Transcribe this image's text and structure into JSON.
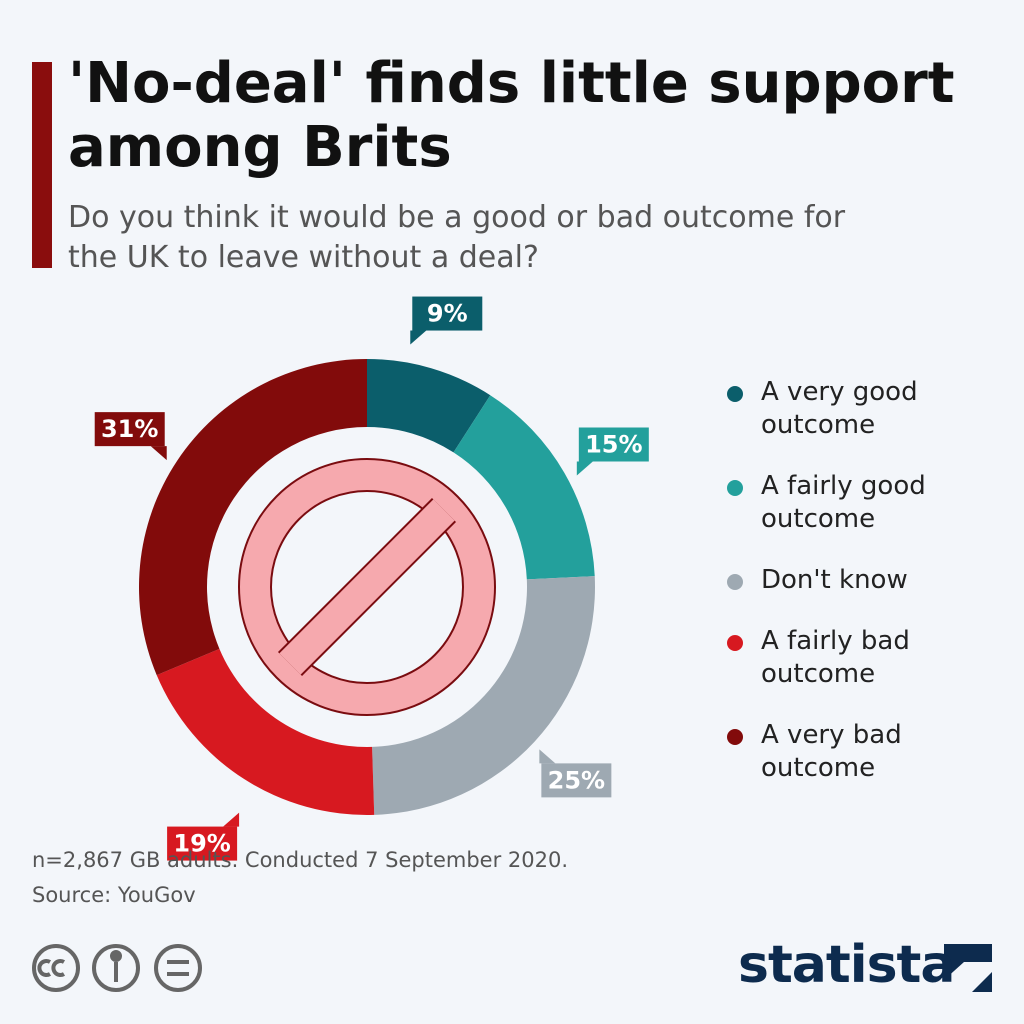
{
  "chart_data": {
    "type": "donut",
    "title": "'No-deal' finds little support among Brits",
    "subtitle": "Do you think it would be a good or bad outcome for the UK to leave without a deal?",
    "categories": [
      "A very good outcome",
      "A fairly good outcome",
      "Don't know",
      "A fairly bad outcome",
      "A very bad outcome"
    ],
    "values": [
      9,
      15,
      25,
      19,
      31
    ],
    "value_labels": [
      "9%",
      "15%",
      "25%",
      "19%",
      "31%"
    ],
    "colors": [
      "#0b5e6b",
      "#23a09c",
      "#9ea9b2",
      "#d71920",
      "#820b0b"
    ],
    "note": "n=2,867 GB adults. Conducted 7 September 2020.",
    "source": "Source: YouGov"
  },
  "logo": "statista"
}
